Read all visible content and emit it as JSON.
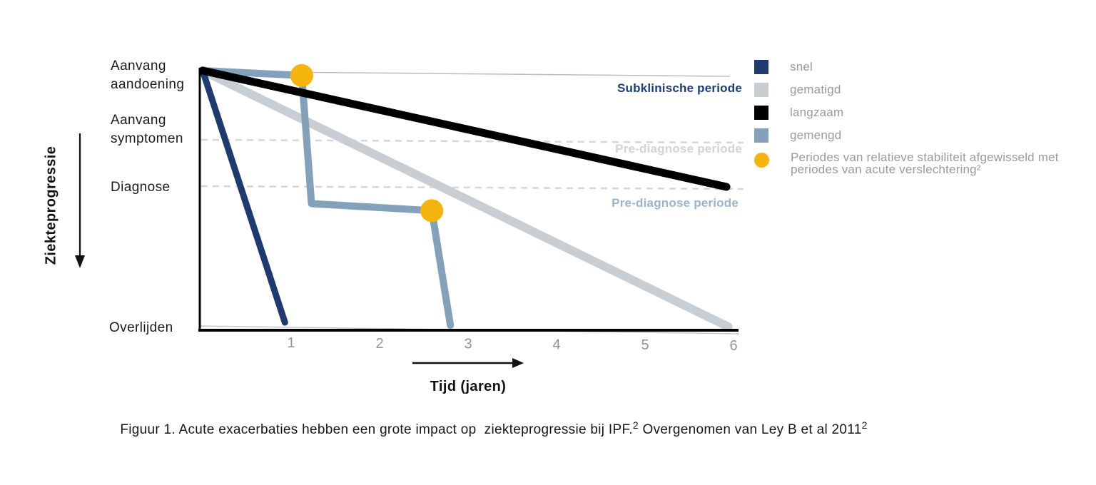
{
  "figure": {
    "annotations": {
      "subclinical": "Subklinische periode",
      "prediagnose_1": "Pre-diagnose periode",
      "prediagnose_2": "Pre-diagnose periode"
    },
    "caption": {
      "part1": "Figuur 1. Acute exacerbaties hebben een grote impact op  ziekteprogressie bij IPF.",
      "sup1": "2",
      "part2": " Overgenomen van Ley B et al 2011",
      "sup2": "2"
    }
  },
  "legend": {
    "items": [
      {
        "label": "snel",
        "color": "#1e3a6e",
        "shape": "square"
      },
      {
        "label": "gematigd",
        "color": "#c9ced3",
        "shape": "square"
      },
      {
        "label": "langzaam",
        "color": "#000000",
        "shape": "square"
      },
      {
        "label": "gemengd",
        "color": "#83a1ba",
        "shape": "square"
      },
      {
        "label": "Periodes van relatieve stabiliteit afgewisseld met periodes van acute verslechtering²",
        "color": "#f6b40e",
        "shape": "circle"
      }
    ]
  },
  "colors": {
    "snel": "#1e3a6e",
    "gematigd": "#c9ced3",
    "langzaam": "#000000",
    "gemengd": "#83a1ba",
    "marker": "#f6b40e",
    "axis": "#000000",
    "subclinical_text": "#1d3e7c",
    "prediagnose_1_text": "#cdd4dc",
    "prediagnose_2_text": "#9db3c9",
    "dashed_line": "#d3d7db",
    "thin_line": "#b9bdc2",
    "tick_text": "#8f9398",
    "legend_text": "#9a9a9a",
    "label_text": "#1b1b1b"
  },
  "chart_data": {
    "type": "line",
    "xlabel": "Tijd (jaren)",
    "ylabel": "Ziekteprogressie",
    "x_range": [
      0,
      6
    ],
    "x_ticks": [
      "1",
      "2",
      "3",
      "4",
      "5",
      "6"
    ],
    "y_stages": [
      "Aanvang aandoening",
      "Aanvang symptomen",
      "Diagnose",
      "Overlijden"
    ],
    "y_stage_scale_note": "y in stage units: 0=Aanvang aandoening, 1=Aanvang symptomen, 2=Diagnose, 3=Overlijden",
    "grid": "dashed horizontal reference lines at Aanvang symptomen and Diagnose; thin solid lines at top (subklinische periode) and bottom (Overlijden)",
    "legend_position": "right",
    "series": [
      {
        "name": "gematigd",
        "color": "#c9ced3",
        "width": 12,
        "points": [
          [
            0,
            0
          ],
          [
            5.94,
            3.0
          ]
        ]
      },
      {
        "name": "gemengd",
        "color": "#83a1ba",
        "width": 10,
        "points": [
          [
            0,
            0
          ],
          [
            1.12,
            0.07
          ],
          [
            1.23,
            2.12
          ],
          [
            2.59,
            2.17
          ],
          [
            2.8,
            2.99
          ]
        ]
      },
      {
        "name": "snel",
        "color": "#1e3a6e",
        "width": 9,
        "points": [
          [
            0,
            0
          ],
          [
            0.93,
            2.97
          ]
        ]
      },
      {
        "name": "langzaam",
        "color": "#000000",
        "width": 11,
        "points": [
          [
            0,
            0
          ],
          [
            5.92,
            2.0
          ]
        ]
      }
    ],
    "markers": {
      "name": "acute exacerbaties",
      "color": "#f6b40e",
      "radius": 16,
      "points": [
        [
          1.12,
          0.07
        ],
        [
          2.59,
          2.17
        ]
      ]
    }
  }
}
